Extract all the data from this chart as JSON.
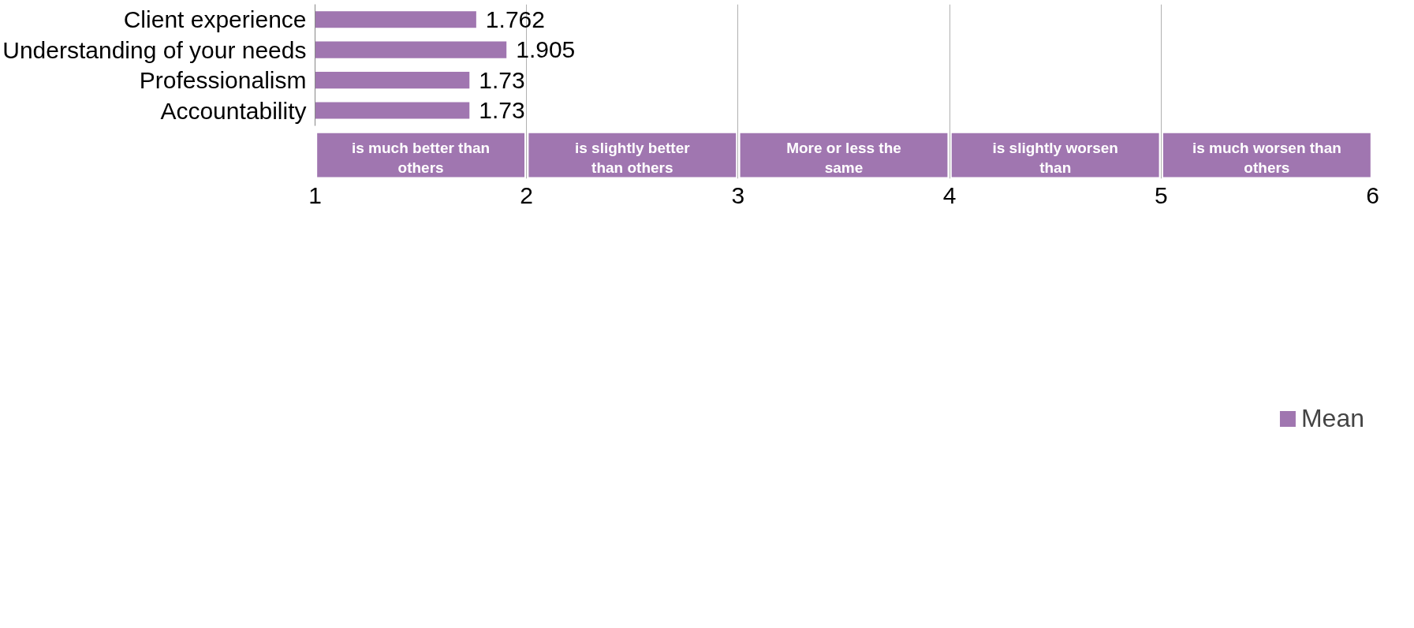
{
  "chart_data": {
    "type": "bar",
    "orientation": "horizontal",
    "categories": [
      "Client experience",
      "Understanding of your needs",
      "Professionalism",
      "Accountability"
    ],
    "series": [
      {
        "name": "Mean",
        "color": "#a076b0",
        "values": [
          1.762,
          1.905,
          1.73,
          1.73
        ]
      }
    ],
    "xlim": [
      1,
      6
    ],
    "xticks": [
      1,
      2,
      3,
      4,
      5,
      6
    ],
    "grid": "x",
    "legend": "bottom",
    "data_labels": true,
    "annotations": [
      "is much better than others",
      "is slightly better than others",
      "More or less the same",
      "is slightly worsen than",
      "is much worsen than others"
    ]
  }
}
